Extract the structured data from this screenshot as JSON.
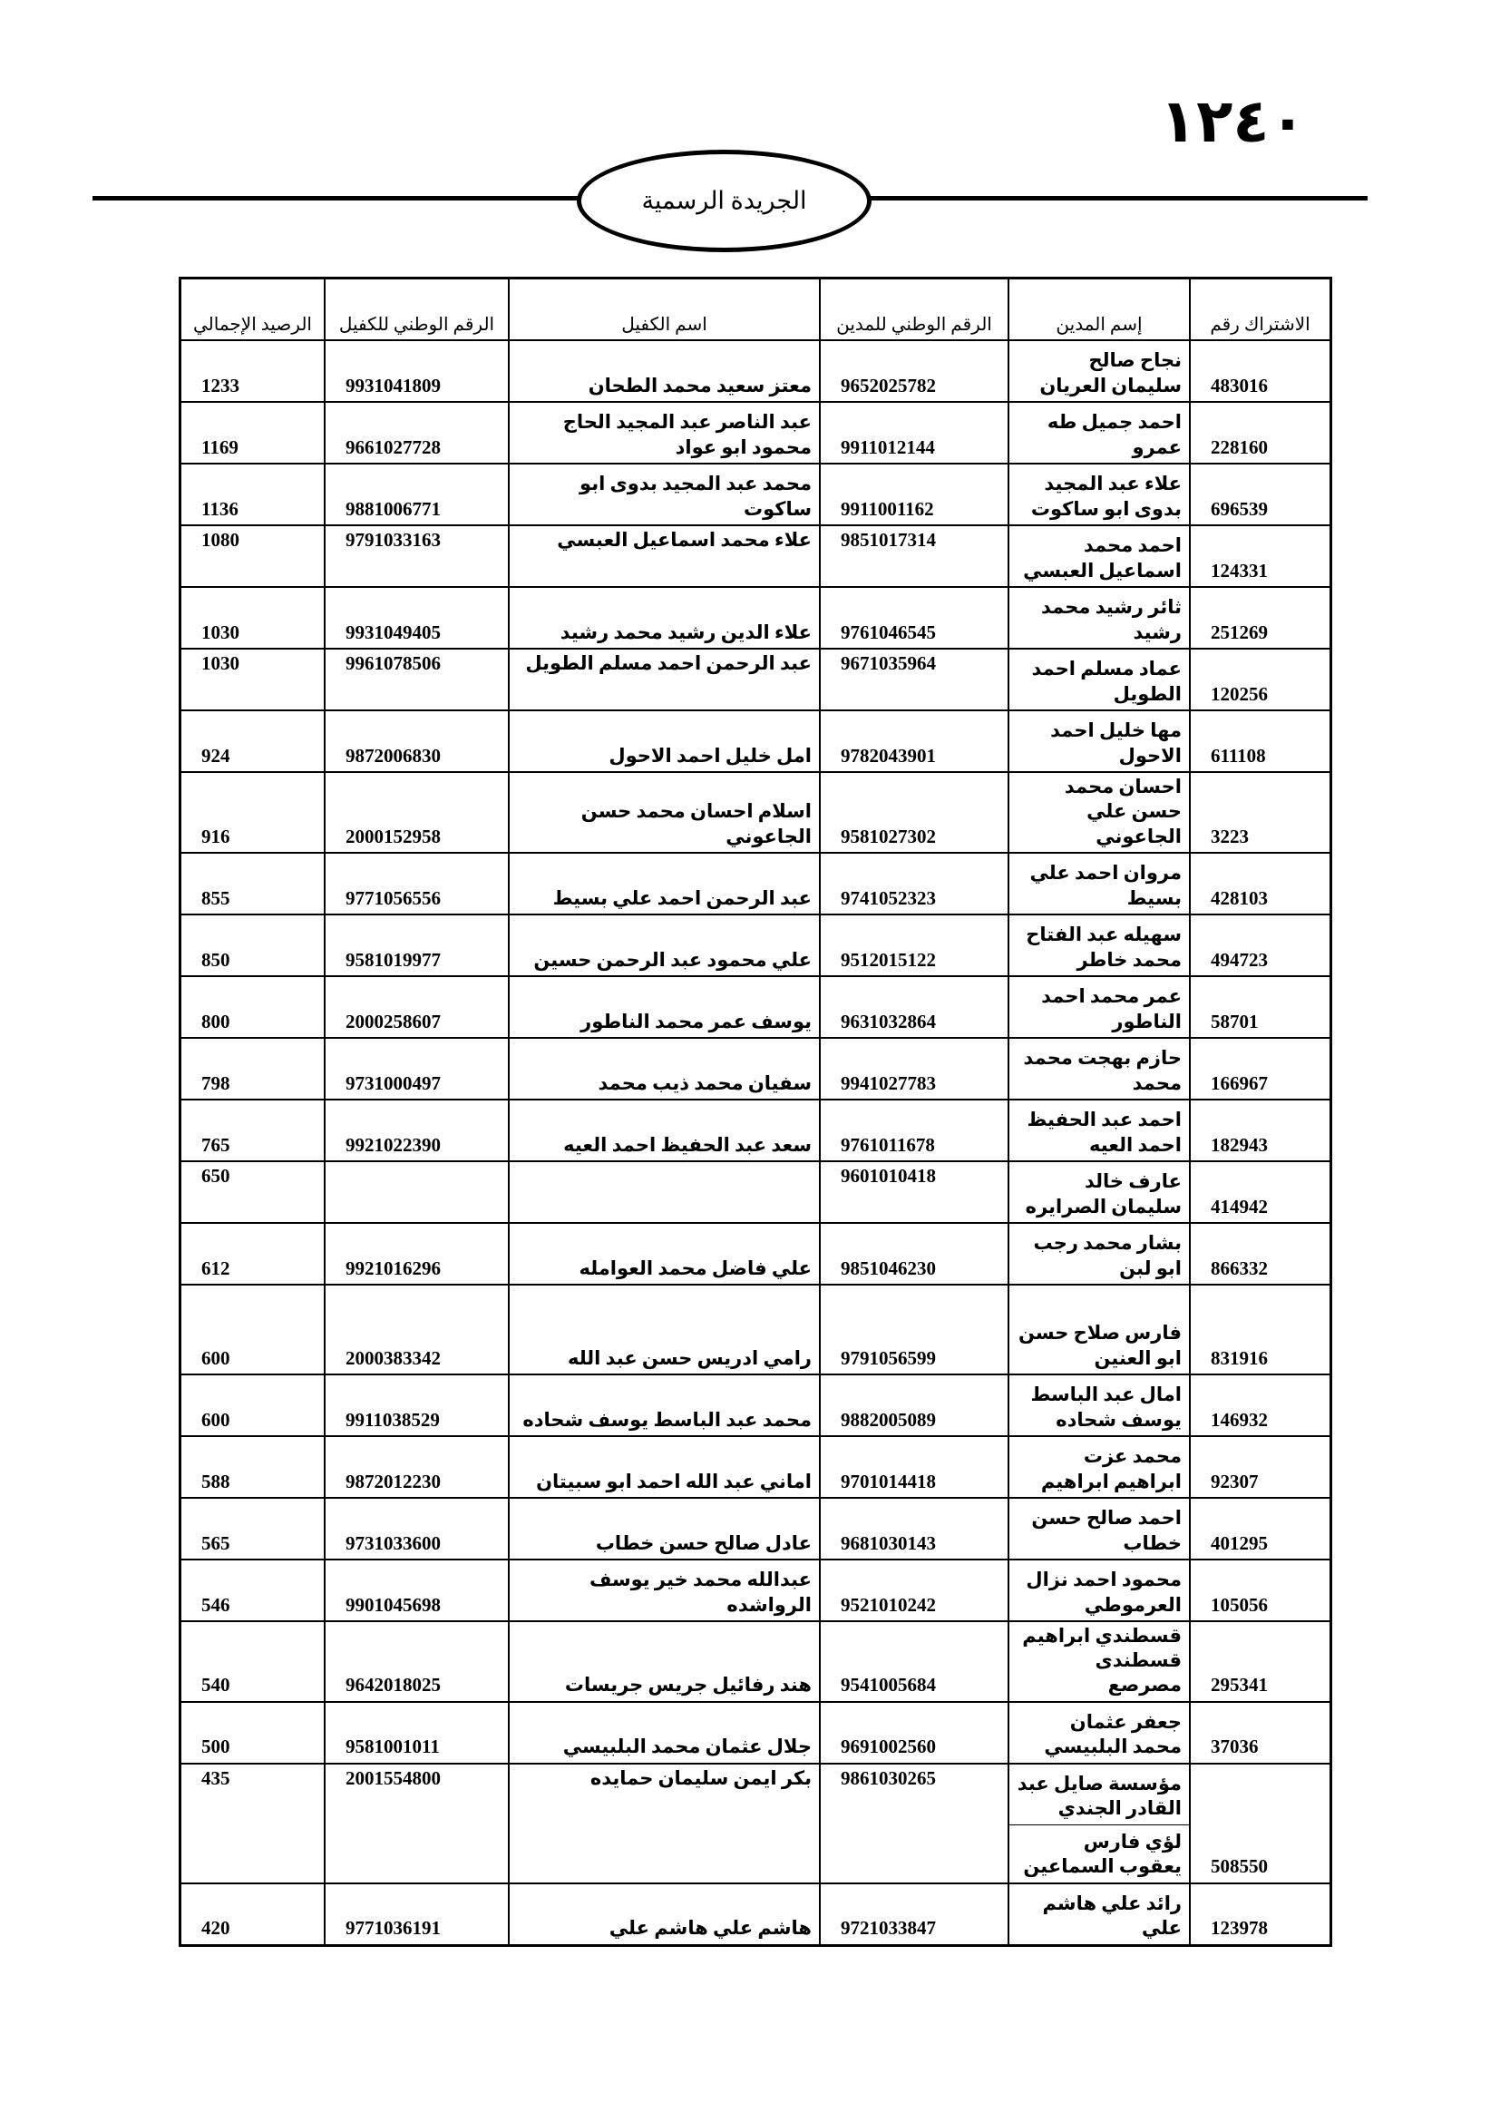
{
  "header": {
    "page_number": "١٢٤٠",
    "title": "الجريدة الرسمية"
  },
  "table": {
    "headers": [
      "الاشتراك رقم",
      "إسم المدين",
      "الرقم الوطني للمدين",
      "اسم الكفيل",
      "الرقم الوطني للكفيل",
      "الرصيد الإجمالي"
    ],
    "rows": [
      {
        "subscription": "483016",
        "debtor_name": "نجاح صالح سليمان العريان",
        "debtor_id": "9652025782",
        "guarantor_name": "معتز سعيد محمد الطحان",
        "guarantor_id": "9931041809",
        "balance": "1233"
      },
      {
        "subscription": "228160",
        "debtor_name": "احمد جميل طه عمرو",
        "debtor_id": "9911012144",
        "guarantor_name": "عبد الناصر عبد المجيد الحاج محمود ابو عواد",
        "guarantor_id": "9661027728",
        "balance": "1169"
      },
      {
        "subscription": "696539",
        "debtor_name": "علاء عبد المجيد بدوى ابو ساكوت",
        "debtor_id": "9911001162",
        "guarantor_name": "محمد عبد المجيد بدوى ابو ساكوت",
        "guarantor_id": "9881006771",
        "balance": "1136"
      },
      {
        "subscription": "124331",
        "debtor_name": "احمد محمد اسماعيل العبسي",
        "debtor_id": "9851017314",
        "guarantor_name": "علاء محمد اسماعيل العبسي",
        "guarantor_id": "9791033163",
        "balance": "1080"
      },
      {
        "subscription": "251269",
        "debtor_name": "ثائر رشيد محمد رشيد",
        "debtor_id": "9761046545",
        "guarantor_name": "علاء الدين رشيد محمد رشيد",
        "guarantor_id": "9931049405",
        "balance": "1030"
      },
      {
        "subscription": "120256",
        "debtor_name": "عماد مسلم احمد الطويل",
        "debtor_id": "9671035964",
        "guarantor_name": "عبد الرحمن احمد مسلم الطويل",
        "guarantor_id": "9961078506",
        "balance": "1030"
      },
      {
        "subscription": "611108",
        "debtor_name": "مها خليل احمد الاحول",
        "debtor_id": "9782043901",
        "guarantor_name": "امل خليل احمد الاحول",
        "guarantor_id": "9872006830",
        "balance": "924"
      },
      {
        "subscription": "3223",
        "debtor_name": "احسان محمد حسن علي الجاعوني",
        "debtor_id": "9581027302",
        "guarantor_name": "اسلام احسان محمد حسن الجاعوني",
        "guarantor_id": "2000152958",
        "balance": "916"
      },
      {
        "subscription": "428103",
        "debtor_name": "مروان احمد علي بسيط",
        "debtor_id": "9741052323",
        "guarantor_name": "عبد الرحمن احمد علي بسيط",
        "guarantor_id": "9771056556",
        "balance": "855"
      },
      {
        "subscription": "494723",
        "debtor_name": "سهيله عبد الفتاح محمد خاطر",
        "debtor_id": "9512015122",
        "guarantor_name": "علي محمود عبد الرحمن حسين",
        "guarantor_id": "9581019977",
        "balance": "850"
      },
      {
        "subscription": "58701",
        "debtor_name": "عمر محمد احمد الناطور",
        "debtor_id": "9631032864",
        "guarantor_name": "يوسف عمر محمد الناطور",
        "guarantor_id": "2000258607",
        "balance": "800"
      },
      {
        "subscription": "166967",
        "debtor_name": "حازم بهجت محمد محمد",
        "debtor_id": "9941027783",
        "guarantor_name": "سفيان محمد ذيب محمد",
        "guarantor_id": "9731000497",
        "balance": "798"
      },
      {
        "subscription": "182943",
        "debtor_name": "احمد عبد الحفيظ احمد العيه",
        "debtor_id": "9761011678",
        "guarantor_name": "سعد عبد الحفيظ احمد العيه",
        "guarantor_id": "9921022390",
        "balance": "765"
      },
      {
        "subscription": "414942",
        "debtor_name": "عارف خالد سليمان الصرايره",
        "debtor_id": "9601010418",
        "balance": "650"
      },
      {
        "subscription": "866332",
        "debtor_name": "بشار محمد رجب ابو لبن",
        "debtor_id": "9851046230",
        "guarantor_name": "علي فاضل محمد العوامله",
        "guarantor_id": "9921016296",
        "balance": "612"
      },
      {
        "subscription": "831916",
        "debtor_name": "فارس صلاح حسن ابو العنين",
        "debtor_id": "9791056599",
        "guarantor_name": "رامي ادريس حسن عبد الله",
        "guarantor_id": "2000383342",
        "balance": "600"
      },
      {
        "subscription": "146932",
        "debtor_name": "امال عبد الباسط يوسف شحاده",
        "debtor_id": "9882005089",
        "guarantor_name": "محمد عبد الباسط يوسف شحاده",
        "guarantor_id": "9911038529",
        "balance": "600"
      },
      {
        "subscription": "92307",
        "debtor_name": "محمد عزت ابراهيم ابراهيم",
        "debtor_id": "9701014418",
        "guarantor_name": "اماني عبد الله احمد ابو سبيتان",
        "guarantor_id": "9872012230",
        "balance": "588"
      },
      {
        "subscription": "401295",
        "debtor_name": "احمد صالح حسن خطاب",
        "debtor_id": "9681030143",
        "guarantor_name": "عادل صالح حسن خطاب",
        "guarantor_id": "9731033600",
        "balance": "565"
      },
      {
        "subscription": "105056",
        "debtor_name": "محمود احمد نزال العرموطي",
        "debtor_id": "9521010242",
        "guarantor_name": "عبدالله محمد خير يوسف الرواشده",
        "guarantor_id": "9901045698",
        "balance": "546"
      },
      {
        "subscription": "295341",
        "debtor_name": "قسطندي ابراهيم قسطندى مصرصع",
        "debtor_id": "9541005684",
        "guarantor_name": "هند رفائيل جريس جريسات",
        "guarantor_id": "9642018025",
        "balance": "540"
      },
      {
        "subscription": "37036",
        "debtor_name": "جعفر عثمان محمد البلبيسي",
        "debtor_id": "9691002560",
        "guarantor_name": "جلال عثمان محمد البلبيسي",
        "guarantor_id": "9581001011",
        "balance": "500"
      },
      {
        "subscription": "508550",
        "debtor_name": [
          "مؤسسة صايل عبد القادر الجندي",
          "لؤي فارس يعقوب السماعين"
        ],
        "debtor_id": "9861030265",
        "guarantor_name": "بكر ايمن سليمان حمايده",
        "guarantor_id": "2001554800",
        "balance": "435"
      },
      {
        "subscription": "123978",
        "debtor_name": "رائد علي هاشم علي",
        "debtor_id": "9721033847",
        "guarantor_name": "هاشم علي هاشم علي",
        "guarantor_id": "9771036191",
        "balance": "420"
      }
    ]
  }
}
